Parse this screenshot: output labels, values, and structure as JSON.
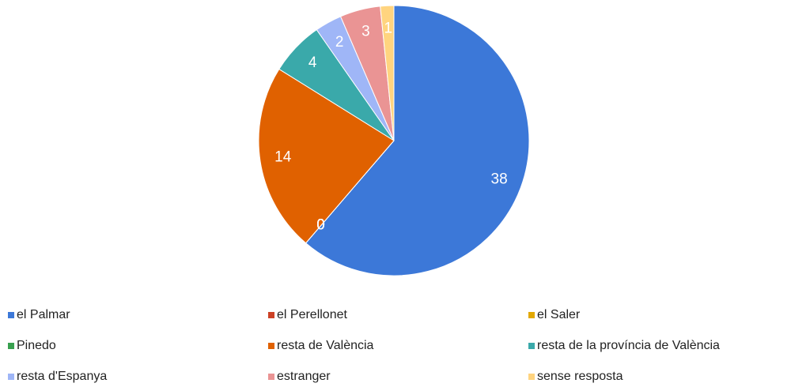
{
  "chart_data": {
    "type": "pie",
    "categories": [
      "el Palmar",
      "el Perellonet",
      "el Saler",
      "Pinedo",
      "resta de València",
      "resta de la província de València",
      "resta d'Espanya",
      "estranger",
      "sense resposta"
    ],
    "values": [
      38,
      0,
      0,
      0,
      14,
      4,
      2,
      3,
      1
    ],
    "colors": [
      "#3c78d8",
      "#cc4125",
      "#e2a800",
      "#38a04f",
      "#e06100",
      "#3aa9aa",
      "#9fb6f7",
      "#ea9494",
      "#ffd47f"
    ]
  }
}
